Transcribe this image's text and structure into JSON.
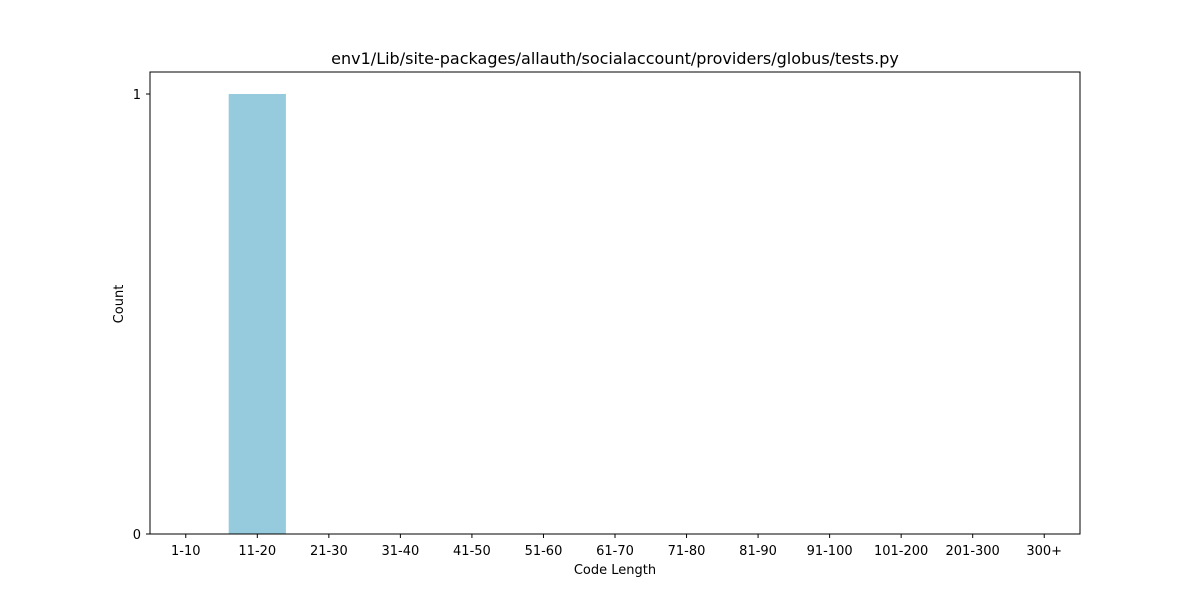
{
  "chart_data": {
    "type": "bar",
    "title": "env1/Lib/site-packages/allauth/socialaccount/providers/globus/tests.py",
    "xlabel": "Code Length",
    "ylabel": "Count",
    "categories": [
      "1-10",
      "11-20",
      "21-30",
      "31-40",
      "41-50",
      "51-60",
      "61-70",
      "71-80",
      "81-90",
      "91-100",
      "101-200",
      "201-300",
      "300+"
    ],
    "values": [
      0,
      1,
      0,
      0,
      0,
      0,
      0,
      0,
      0,
      0,
      0,
      0,
      0
    ],
    "ylim": [
      0,
      1.05
    ],
    "yticks": [
      0,
      1
    ],
    "bar_color": "#96cadd",
    "grid": false,
    "legend": "none"
  }
}
